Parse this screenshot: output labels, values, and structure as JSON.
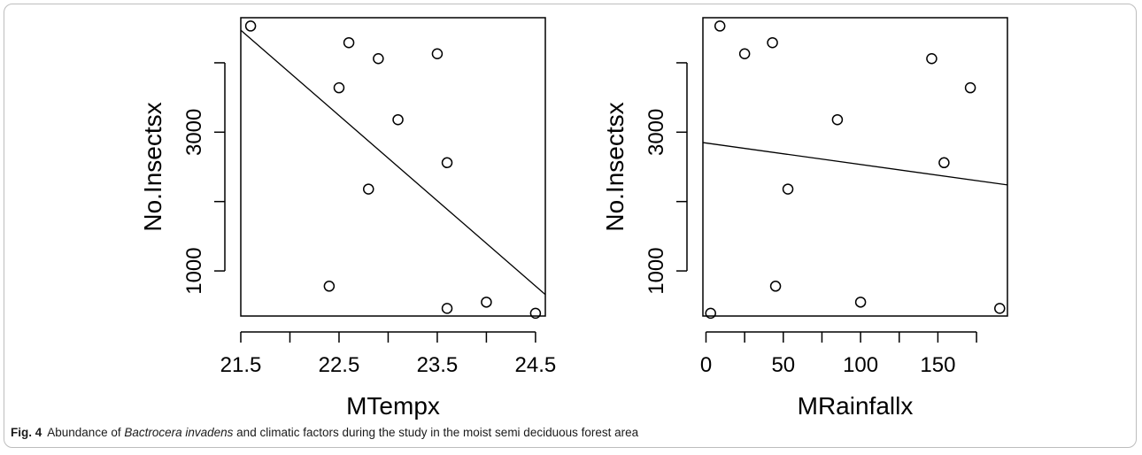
{
  "chart_data": [
    {
      "type": "scatter",
      "title": "",
      "xlabel": "MTempx",
      "ylabel": "No.Insectsx",
      "xlim": [
        21.5,
        24.6
      ],
      "ylim": [
        350,
        4650
      ],
      "x_ticks": [
        21.5,
        22,
        22.5,
        23,
        23.5,
        24,
        24.5
      ],
      "x_tick_labels": [
        "21.5",
        "",
        "22.5",
        "",
        "23.5",
        "",
        "24.5"
      ],
      "y_ticks": [
        1000,
        2000,
        3000,
        4000
      ],
      "y_tick_labels": [
        "1000",
        "",
        "3000",
        ""
      ],
      "grid": false,
      "points": [
        {
          "x": 21.6,
          "y": 4530
        },
        {
          "x": 22.4,
          "y": 780
        },
        {
          "x": 22.5,
          "y": 3640
        },
        {
          "x": 22.6,
          "y": 4290
        },
        {
          "x": 22.8,
          "y": 2180
        },
        {
          "x": 22.9,
          "y": 4060
        },
        {
          "x": 23.1,
          "y": 3180
        },
        {
          "x": 23.5,
          "y": 4130
        },
        {
          "x": 23.6,
          "y": 2560
        },
        {
          "x": 23.6,
          "y": 460
        },
        {
          "x": 24.0,
          "y": 550
        },
        {
          "x": 24.5,
          "y": 390
        }
      ],
      "fit_line": {
        "x1": 21.5,
        "y1": 4470,
        "x2": 24.6,
        "y2": 660
      }
    },
    {
      "type": "scatter",
      "title": "",
      "xlabel": "MRainfallx",
      "ylabel": "No.Insectsx",
      "xlim": [
        -2,
        195
      ],
      "ylim": [
        350,
        4650
      ],
      "x_ticks": [
        0,
        25,
        50,
        75,
        100,
        125,
        150,
        175
      ],
      "x_tick_labels": [
        "0",
        "",
        "50",
        "",
        "100",
        "",
        "150",
        ""
      ],
      "y_ticks": [
        1000,
        2000,
        3000,
        4000
      ],
      "y_tick_labels": [
        "1000",
        "",
        "3000",
        ""
      ],
      "grid": false,
      "points": [
        {
          "x": 3,
          "y": 390
        },
        {
          "x": 9,
          "y": 4530
        },
        {
          "x": 25,
          "y": 4130
        },
        {
          "x": 43,
          "y": 4290
        },
        {
          "x": 45,
          "y": 780
        },
        {
          "x": 53,
          "y": 2180
        },
        {
          "x": 85,
          "y": 3180
        },
        {
          "x": 100,
          "y": 550
        },
        {
          "x": 146,
          "y": 4060
        },
        {
          "x": 154,
          "y": 2560
        },
        {
          "x": 171,
          "y": 3640
        },
        {
          "x": 190,
          "y": 460
        }
      ],
      "fit_line": {
        "x1": -2,
        "y1": 2850,
        "x2": 195,
        "y2": 2240
      }
    }
  ],
  "caption": {
    "label": "Fig. 4",
    "text_before": "Abundance of ",
    "species": "Bactrocera invadens",
    "text_after": " and climatic factors during the study in the moist semi deciduous forest area"
  }
}
